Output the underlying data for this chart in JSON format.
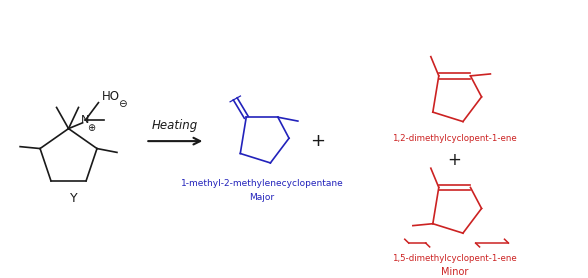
{
  "bg_color": "#ffffff",
  "black": "#1a1a1a",
  "blue": "#2222bb",
  "red": "#cc2222",
  "heating_text": "Heating",
  "major_label": "1-methyl-2-methylenecyclopentane",
  "major_sublabel": "Major",
  "product1_label": "1,2-dimethylcyclopent-1-ene",
  "product2_label": "1,5-dimethylcyclopent-1-ene",
  "minor_label": "Minor",
  "Y_label": "Y",
  "plus_color": "#1a1a1a"
}
